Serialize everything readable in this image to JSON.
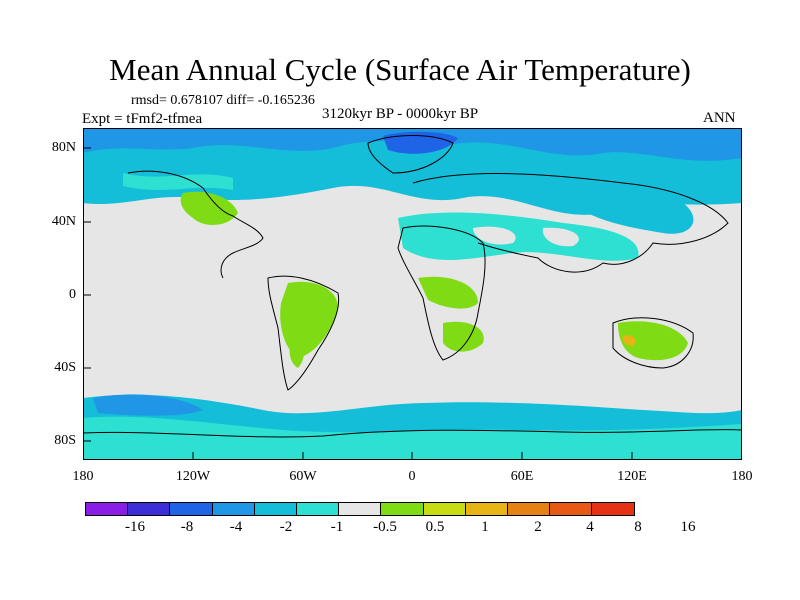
{
  "title": "Mean Annual Cycle (Surface Air Temperature)",
  "stats": "rmsd= 0.678107 diff= -0.165236",
  "experiment": "Expt = tFmf2-tfmea",
  "period": "3120kyr BP - 0000kyr BP",
  "season": "ANN",
  "lat_ticks": [
    "80N",
    "40N",
    "0",
    "40S",
    "80S"
  ],
  "lon_ticks": [
    "180",
    "120W",
    "60W",
    "0",
    "60E",
    "120E",
    "180"
  ],
  "colorbar": {
    "labels": [
      "-16",
      "-8",
      "-4",
      "-2",
      "-1",
      "-0.5",
      "0.5",
      "1",
      "2",
      "4",
      "8",
      "16"
    ],
    "colors": [
      "#8b1ee6",
      "#3c2ed6",
      "#1f64e6",
      "#1f96e6",
      "#14bed8",
      "#2de0d2",
      "#e6e6e6",
      "#7fdc14",
      "#c8dc14",
      "#e6b414",
      "#e68214",
      "#e65a14",
      "#e63214"
    ]
  },
  "palette": {
    "land_neutral": "#e6e6e6",
    "ocean_bg": "#ffffff",
    "coast": "#000000"
  }
}
